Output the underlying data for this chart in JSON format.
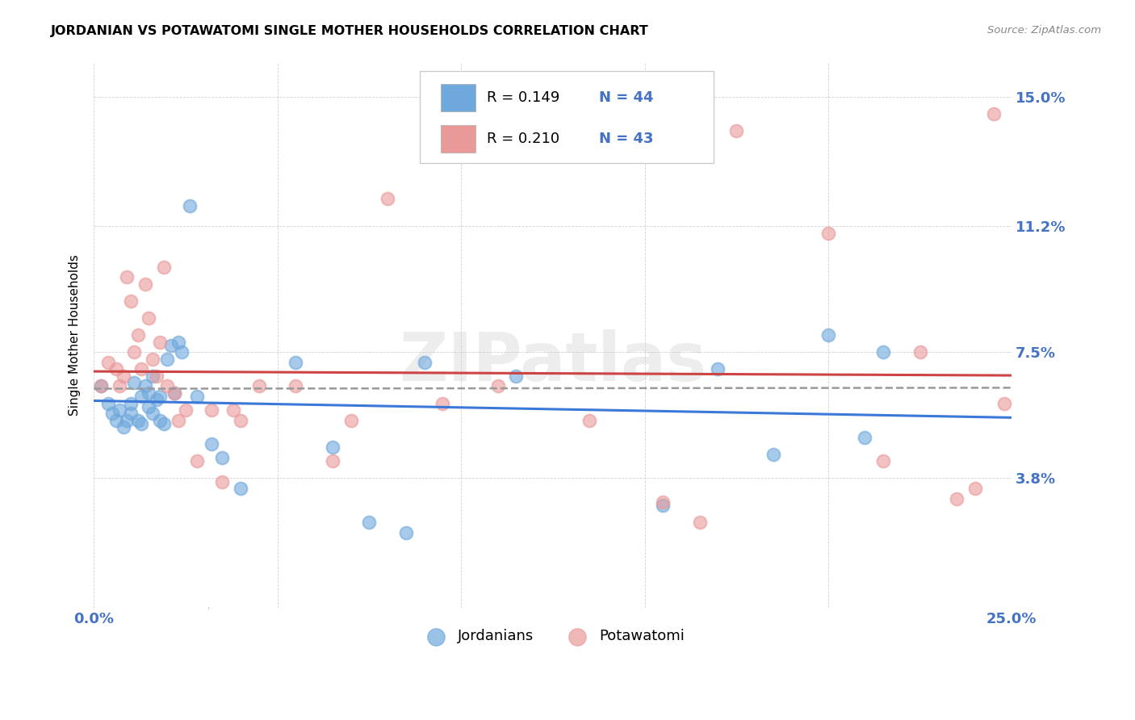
{
  "title": "JORDANIAN VS POTAWATOMI SINGLE MOTHER HOUSEHOLDS CORRELATION CHART",
  "source": "Source: ZipAtlas.com",
  "ylabel": "Single Mother Households",
  "xlim": [
    0.0,
    0.25
  ],
  "ylim": [
    0.0,
    0.16
  ],
  "xticks": [
    0.0,
    0.05,
    0.1,
    0.15,
    0.2,
    0.25
  ],
  "xticklabels": [
    "0.0%",
    "",
    "",
    "",
    "",
    "25.0%"
  ],
  "yticks": [
    0.038,
    0.075,
    0.112,
    0.15
  ],
  "yticklabels": [
    "3.8%",
    "7.5%",
    "11.2%",
    "15.0%"
  ],
  "blue_color": "#6fa8dc",
  "pink_color": "#ea9999",
  "blue_line_color": "#3c78d8",
  "pink_line_color": "#cc4444",
  "gray_line_color": "#999999",
  "label_color": "#4472c4",
  "watermark": "ZIPatlas",
  "jordanians_label": "Jordanians",
  "potawatomi_label": "Potawatomi",
  "blue_x": [
    0.002,
    0.004,
    0.005,
    0.006,
    0.007,
    0.008,
    0.009,
    0.01,
    0.01,
    0.011,
    0.012,
    0.013,
    0.013,
    0.014,
    0.015,
    0.015,
    0.016,
    0.016,
    0.017,
    0.018,
    0.018,
    0.019,
    0.02,
    0.021,
    0.022,
    0.023,
    0.024,
    0.026,
    0.028,
    0.032,
    0.035,
    0.04,
    0.055,
    0.065,
    0.075,
    0.085,
    0.09,
    0.115,
    0.155,
    0.17,
    0.185,
    0.2,
    0.21,
    0.215
  ],
  "blue_y": [
    0.065,
    0.06,
    0.057,
    0.055,
    0.058,
    0.053,
    0.055,
    0.057,
    0.06,
    0.066,
    0.055,
    0.062,
    0.054,
    0.065,
    0.059,
    0.063,
    0.057,
    0.068,
    0.061,
    0.055,
    0.062,
    0.054,
    0.073,
    0.077,
    0.063,
    0.078,
    0.075,
    0.118,
    0.062,
    0.048,
    0.044,
    0.035,
    0.072,
    0.047,
    0.025,
    0.022,
    0.072,
    0.068,
    0.03,
    0.07,
    0.045,
    0.08,
    0.05,
    0.075
  ],
  "pink_x": [
    0.002,
    0.004,
    0.006,
    0.007,
    0.008,
    0.009,
    0.01,
    0.011,
    0.012,
    0.013,
    0.014,
    0.015,
    0.016,
    0.017,
    0.018,
    0.019,
    0.02,
    0.022,
    0.023,
    0.025,
    0.028,
    0.032,
    0.035,
    0.038,
    0.04,
    0.045,
    0.055,
    0.065,
    0.07,
    0.08,
    0.095,
    0.11,
    0.135,
    0.155,
    0.165,
    0.175,
    0.2,
    0.215,
    0.225,
    0.235,
    0.24,
    0.245,
    0.248
  ],
  "pink_y": [
    0.065,
    0.072,
    0.07,
    0.065,
    0.068,
    0.097,
    0.09,
    0.075,
    0.08,
    0.07,
    0.095,
    0.085,
    0.073,
    0.068,
    0.078,
    0.1,
    0.065,
    0.063,
    0.055,
    0.058,
    0.043,
    0.058,
    0.037,
    0.058,
    0.055,
    0.065,
    0.065,
    0.043,
    0.055,
    0.12,
    0.06,
    0.065,
    0.055,
    0.031,
    0.025,
    0.14,
    0.11,
    0.043,
    0.075,
    0.032,
    0.035,
    0.145,
    0.06
  ]
}
